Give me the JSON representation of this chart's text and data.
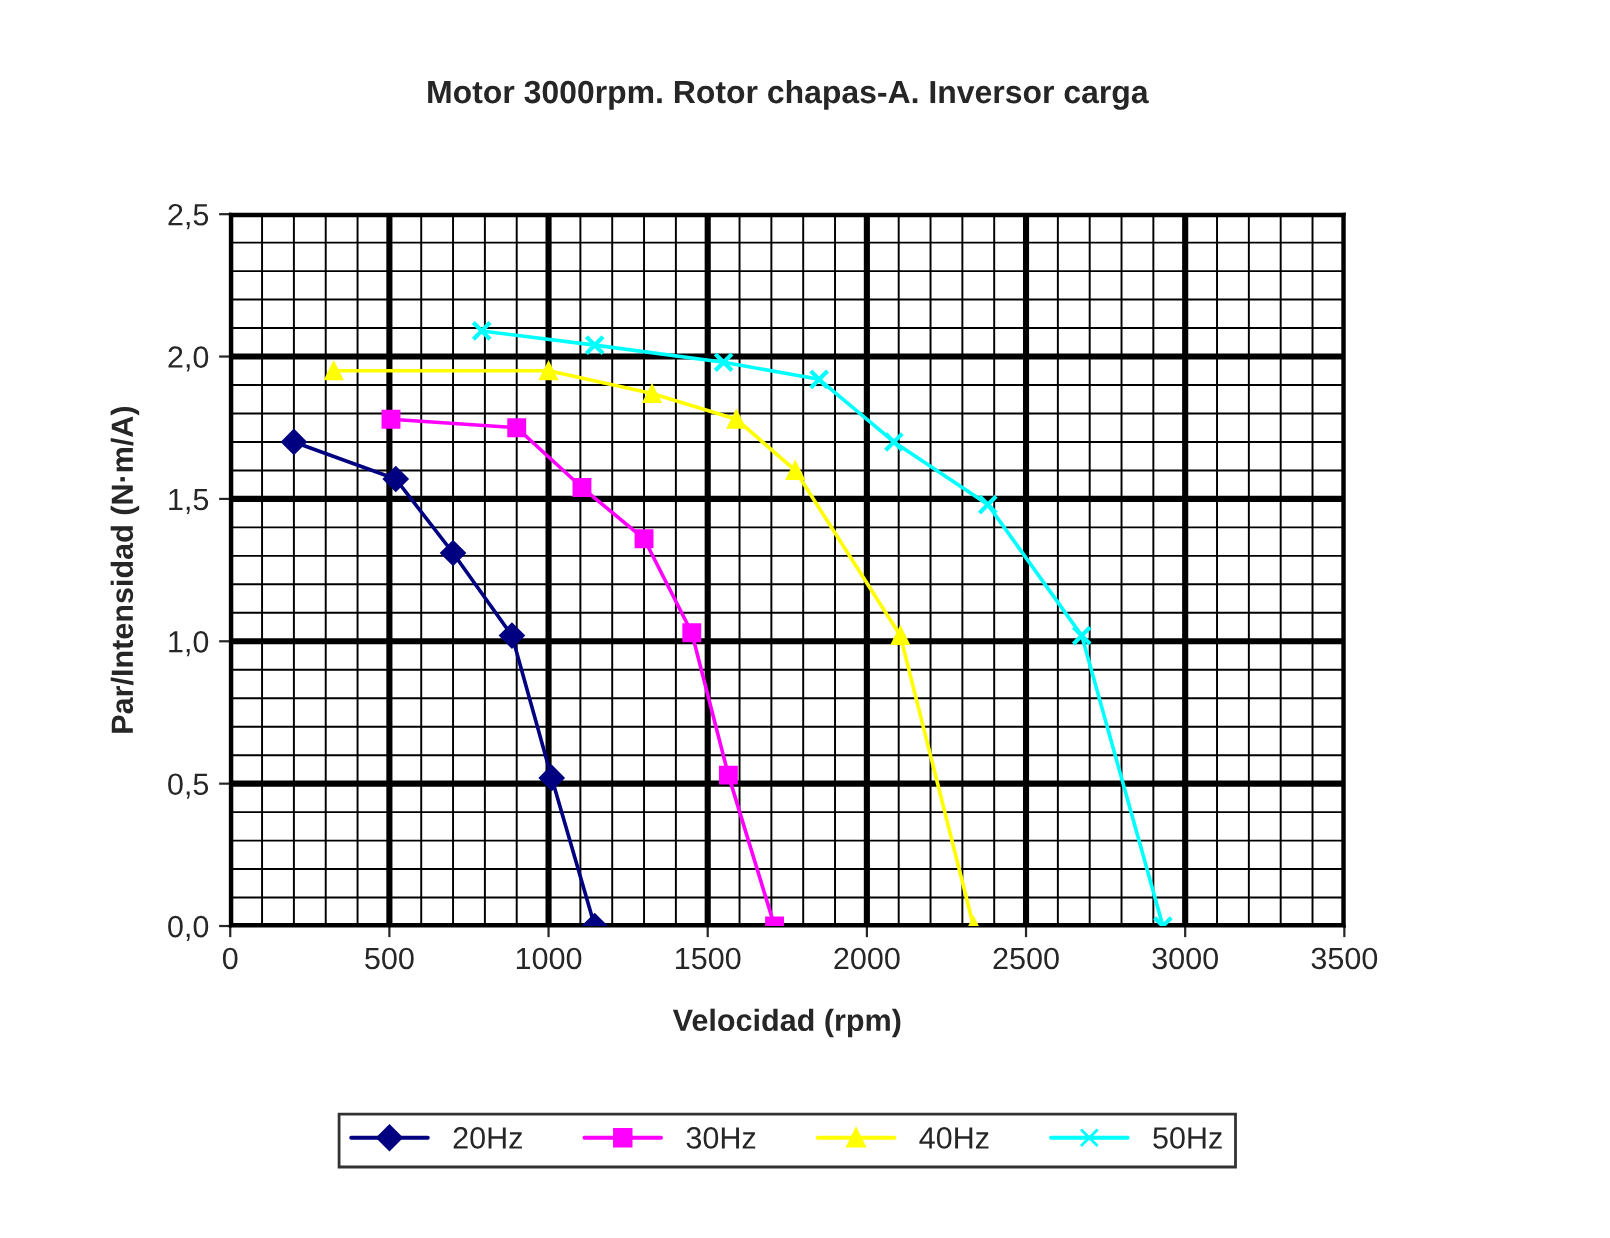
{
  "chart_data": {
    "type": "line",
    "title": "Motor 3000rpm. Rotor chapas-A. Inversor carga",
    "xlabel": "Velocidad (rpm)",
    "ylabel": "Par/Intensidad (N·m/A)",
    "xlim": [
      0,
      3500
    ],
    "xticks": [
      0,
      500,
      1000,
      1500,
      2000,
      2500,
      3000,
      3500
    ],
    "ylim": [
      0,
      2.5
    ],
    "yticks": [
      {
        "value": 0,
        "label": "0,0"
      },
      {
        "value": 0.5,
        "label": "0,5"
      },
      {
        "value": 1,
        "label": "1,0"
      },
      {
        "value": 1.5,
        "label": "1,5"
      },
      {
        "value": 2,
        "label": "2,0"
      },
      {
        "value": 2.5,
        "label": "2,5"
      }
    ],
    "grid": true,
    "legend": "bottom",
    "line_style": "solid",
    "series": [
      {
        "name": "20Hz",
        "color": "#000080",
        "marker": "diamond",
        "x": [
          200,
          520,
          700,
          885,
          1010,
          1145
        ],
        "values": [
          1.7,
          1.57,
          1.31,
          1.02,
          0.52,
          0
        ]
      },
      {
        "name": "30Hz",
        "color": "#ff00ff",
        "marker": "square",
        "x": [
          505,
          900,
          1105,
          1300,
          1450,
          1565,
          1710
        ],
        "values": [
          1.78,
          1.75,
          1.54,
          1.36,
          1.03,
          0.53,
          0
        ]
      },
      {
        "name": "40Hz",
        "color": "#ffff00",
        "marker": "triangle",
        "x": [
          325,
          1000,
          1325,
          1590,
          1775,
          2105,
          2335
        ],
        "values": [
          1.95,
          1.95,
          1.87,
          1.78,
          1.6,
          1.02,
          0
        ]
      },
      {
        "name": "50Hz",
        "color": "#00ffff",
        "marker": "cross",
        "x": [
          790,
          1145,
          1550,
          1850,
          2085,
          2380,
          2675,
          2930
        ],
        "values": [
          2.09,
          2.04,
          1.98,
          1.92,
          1.7,
          1.48,
          1.02,
          0
        ]
      }
    ]
  }
}
